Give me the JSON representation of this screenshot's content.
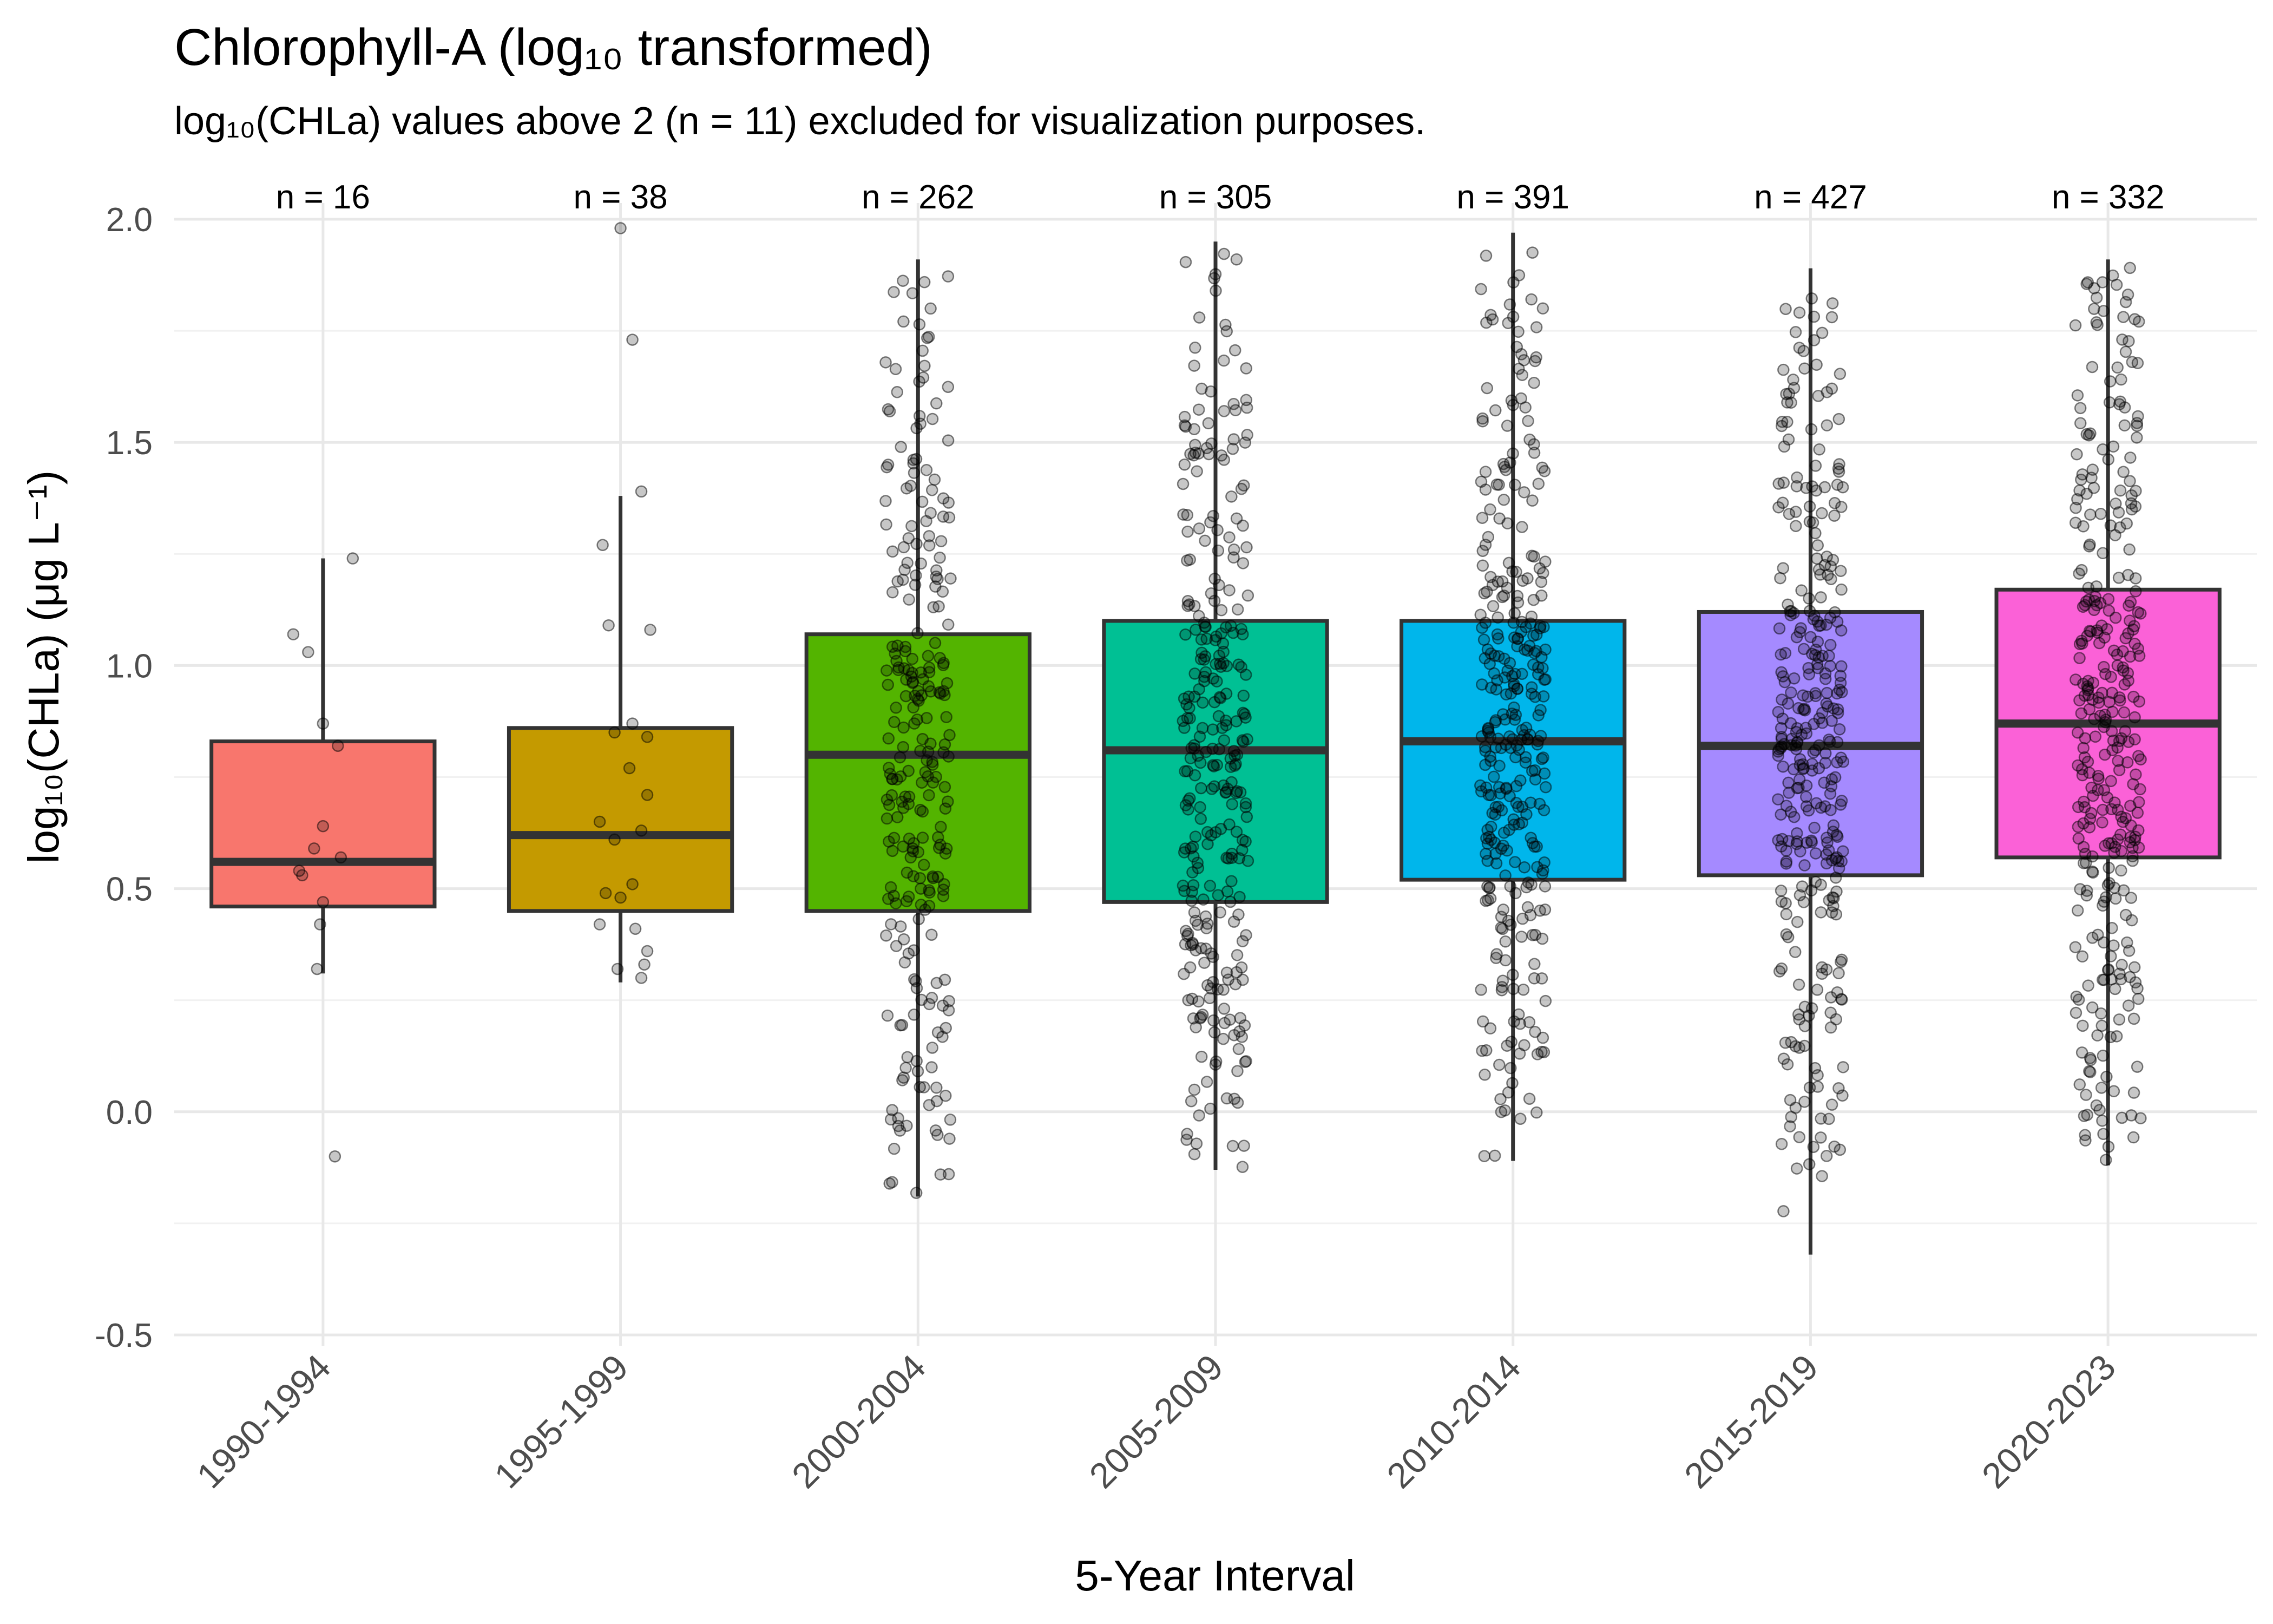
{
  "chart_data": {
    "type": "boxplot",
    "title": "Chlorophyll-A (log₁₀ transformed)",
    "subtitle": "log₁₀(CHLa) values above 2 (n = 11) excluded for visualization purposes.",
    "xlabel": "5-Year Interval",
    "ylabel": "log₁₀(CHLa) (μg L⁻¹)",
    "ylim": [
      -0.5,
      2.0
    ],
    "yticks": [
      -0.5,
      0.0,
      0.5,
      1.0,
      1.5,
      2.0
    ],
    "yticklabels": [
      "-0.5",
      "0.0",
      "0.5",
      "1.0",
      "1.5",
      "2.0"
    ],
    "grid": true,
    "legend": "none",
    "categories": [
      "1990-1994",
      "1995-1999",
      "2000-2004",
      "2005-2009",
      "2010-2014",
      "2015-2019",
      "2020-2023"
    ],
    "n_labels": [
      "n = 16",
      "n = 38",
      "n = 262",
      "n = 305",
      "n = 391",
      "n = 427",
      "n = 332"
    ],
    "counts": [
      16,
      38,
      262,
      305,
      391,
      427,
      332
    ],
    "colors": [
      "#F8766D",
      "#C49A00",
      "#53B400",
      "#00C094",
      "#00B6EB",
      "#A58AFF",
      "#FB61D7"
    ],
    "boxes": [
      {
        "whisker_low": 0.31,
        "q1": 0.46,
        "median": 0.56,
        "q3": 0.83,
        "whisker_high": 1.24
      },
      {
        "whisker_low": 0.29,
        "q1": 0.45,
        "median": 0.62,
        "q3": 0.86,
        "whisker_high": 1.38
      },
      {
        "whisker_low": -0.19,
        "q1": 0.45,
        "median": 0.8,
        "q3": 1.07,
        "whisker_high": 1.91
      },
      {
        "whisker_low": -0.13,
        "q1": 0.47,
        "median": 0.81,
        "q3": 1.1,
        "whisker_high": 1.95
      },
      {
        "whisker_low": -0.11,
        "q1": 0.52,
        "median": 0.83,
        "q3": 1.1,
        "whisker_high": 1.97
      },
      {
        "whisker_low": -0.32,
        "q1": 0.53,
        "median": 0.82,
        "q3": 1.12,
        "whisker_high": 1.89
      },
      {
        "whisker_low": -0.12,
        "q1": 0.57,
        "median": 0.87,
        "q3": 1.17,
        "whisker_high": 1.91
      }
    ],
    "points": [
      [
        [
          0.1,
          1.24
        ],
        [
          -0.1,
          1.07
        ],
        [
          -0.05,
          1.03
        ],
        [
          0.0,
          0.87
        ],
        [
          0.05,
          0.82
        ],
        [
          0.0,
          0.64
        ],
        [
          -0.03,
          0.59
        ],
        [
          0.06,
          0.57
        ],
        [
          -0.08,
          0.54
        ],
        [
          -0.07,
          0.53
        ],
        [
          0.0,
          0.47
        ],
        [
          -0.01,
          0.42
        ],
        [
          -0.02,
          0.32
        ],
        [
          0.04,
          -0.1
        ]
      ],
      [
        [
          0.0,
          1.98
        ],
        [
          0.04,
          1.73
        ],
        [
          0.07,
          1.39
        ],
        [
          -0.06,
          1.27
        ],
        [
          0.1,
          1.08
        ],
        [
          -0.04,
          1.09
        ],
        [
          0.04,
          0.87
        ],
        [
          -0.02,
          0.85
        ],
        [
          0.09,
          0.84
        ],
        [
          0.03,
          0.77
        ],
        [
          0.09,
          0.71
        ],
        [
          -0.07,
          0.65
        ],
        [
          0.07,
          0.63
        ],
        [
          0.04,
          0.51
        ],
        [
          -0.05,
          0.49
        ],
        [
          0.0,
          0.48
        ],
        [
          -0.07,
          0.42
        ],
        [
          0.09,
          0.36
        ],
        [
          0.08,
          0.33
        ],
        [
          0.07,
          0.3
        ],
        [
          -0.01,
          0.32
        ],
        [
          0.05,
          0.41
        ],
        [
          -0.02,
          0.61
        ]
      ]
    ]
  }
}
